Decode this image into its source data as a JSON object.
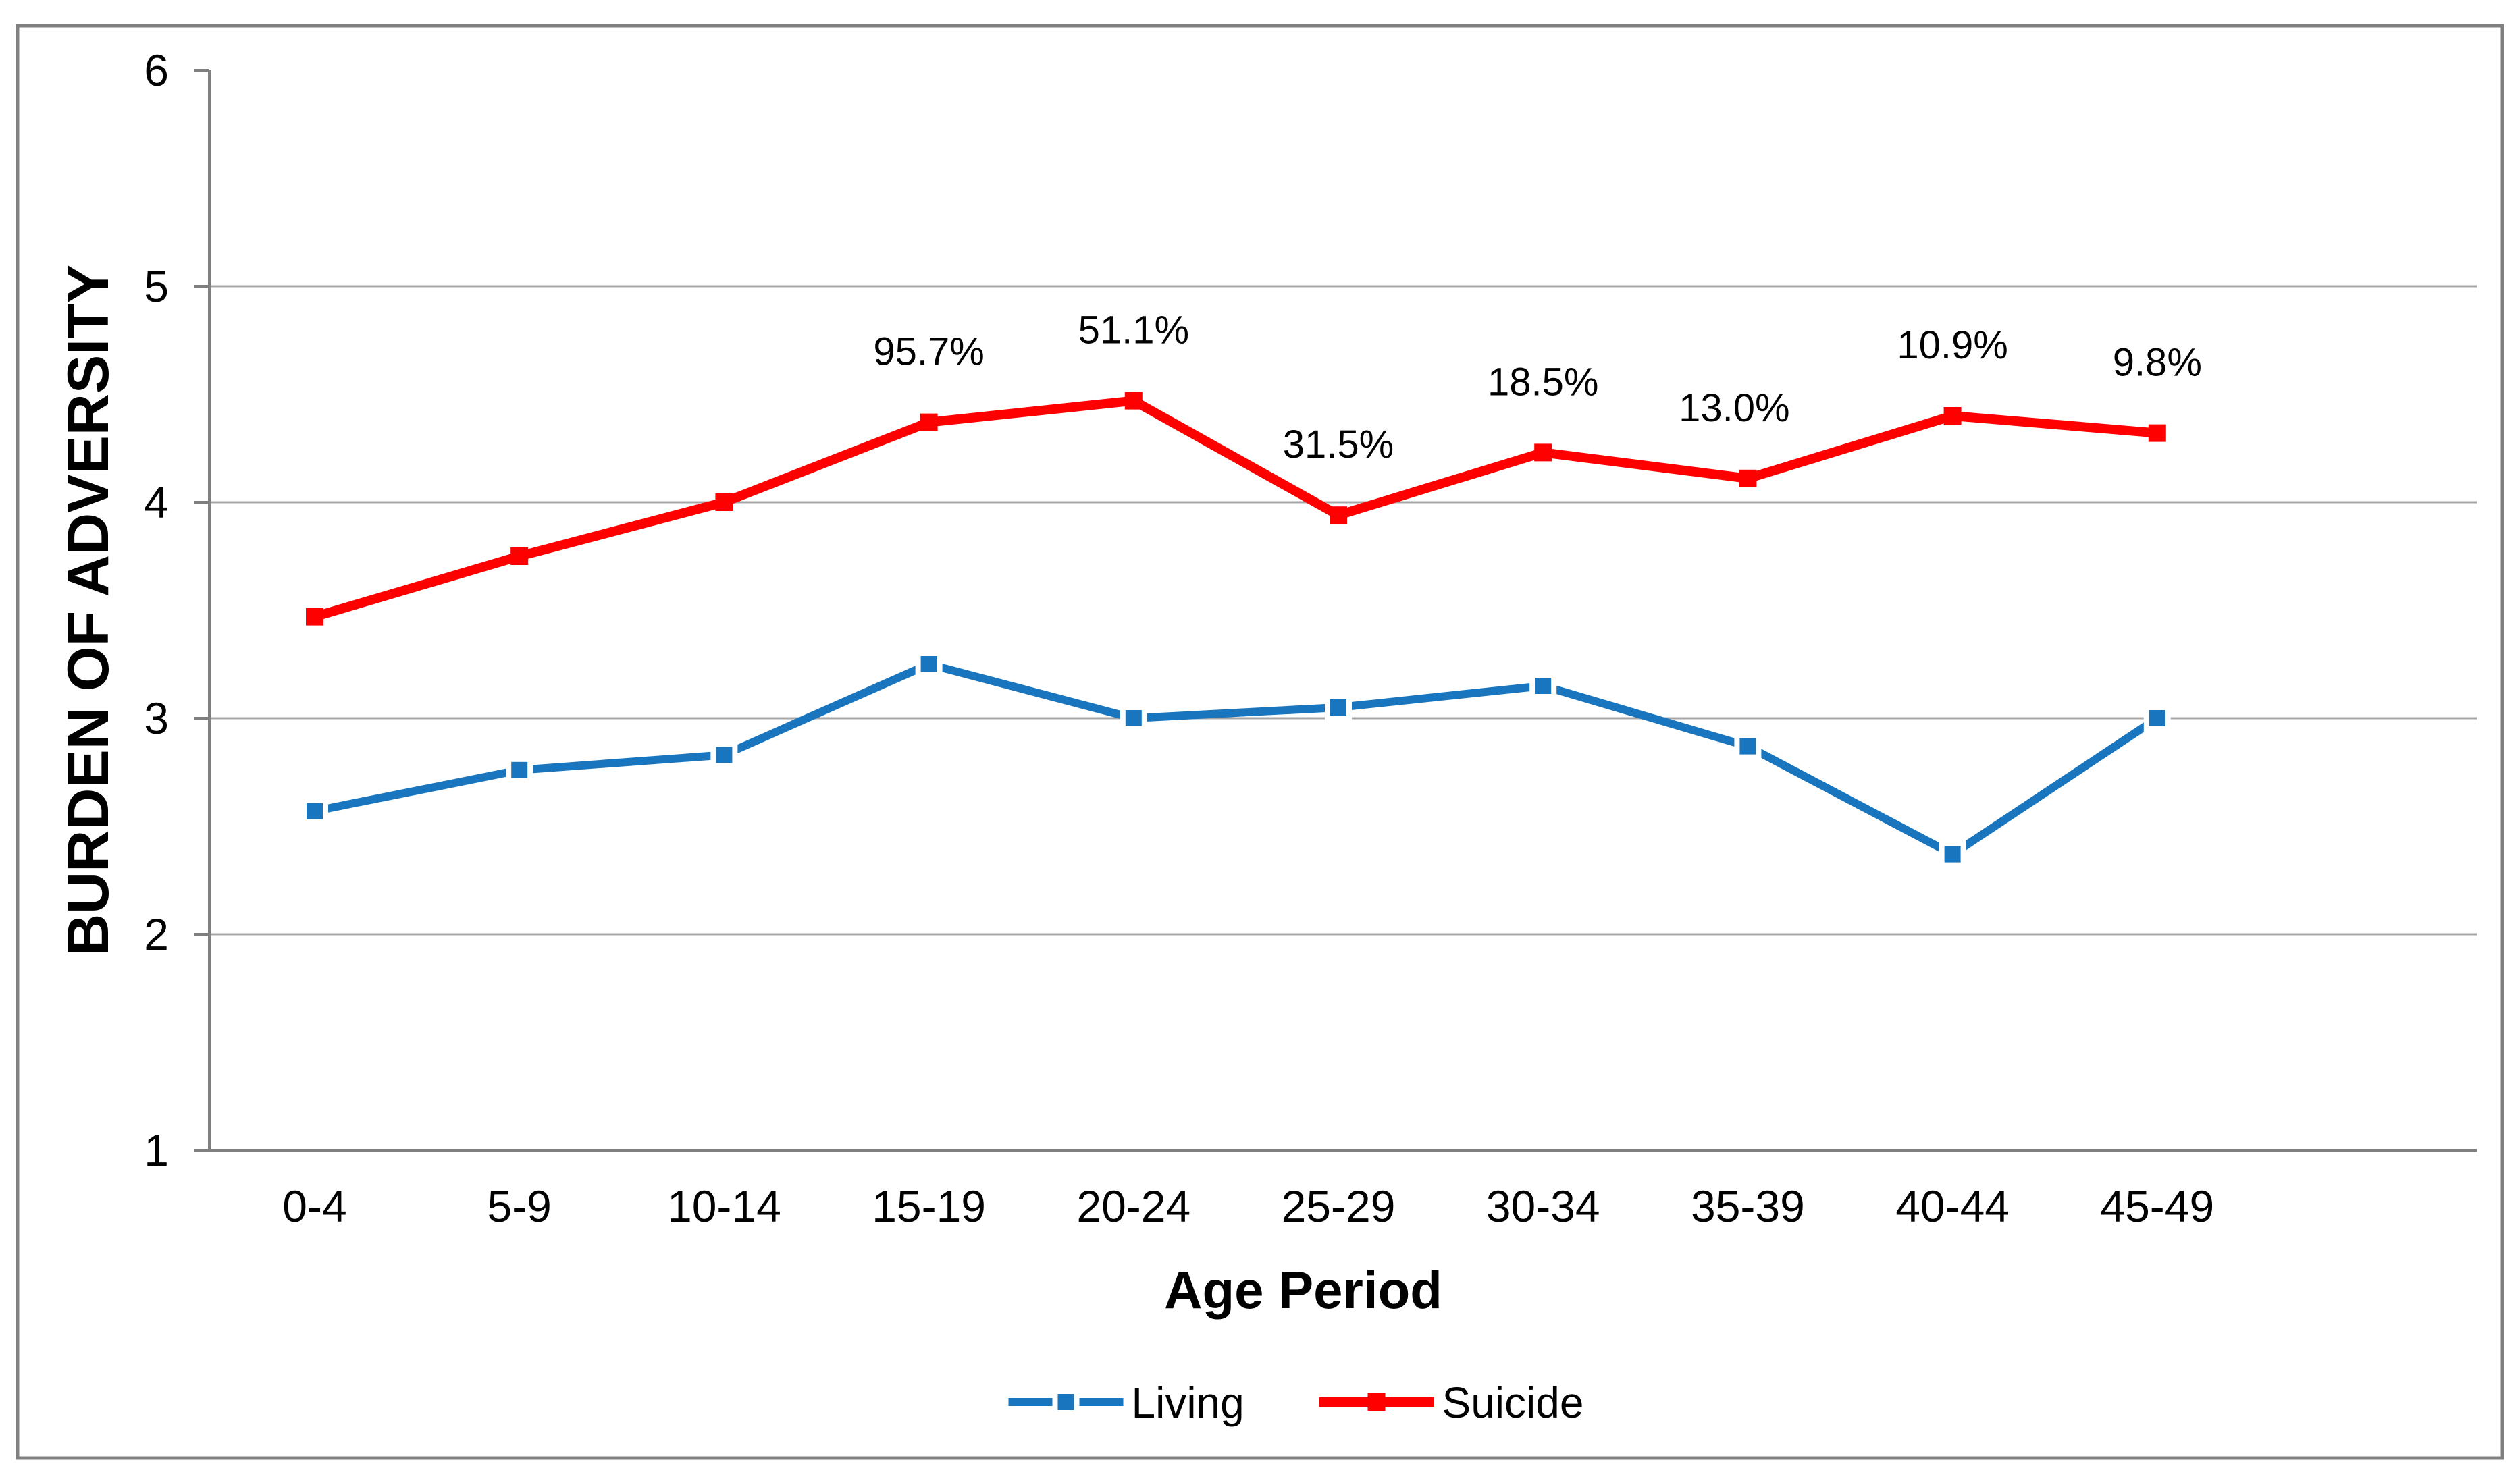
{
  "chart_data": {
    "type": "line",
    "title": "",
    "xlabel": "Age Period",
    "ylabel": "BURDEN OF ADVERSITY",
    "categories": [
      "0-4",
      "5-9",
      "10-14",
      "15-19",
      "20-24",
      "25-29",
      "30-34",
      "35-39",
      "40-44",
      "45-49"
    ],
    "y_axis": {
      "min": 1,
      "max": 6,
      "tick_labels": [
        "1",
        "2",
        "3",
        "4",
        "5",
        "6"
      ],
      "ticks": [
        1,
        2,
        3,
        4,
        5,
        6
      ]
    },
    "grid": true,
    "legend_position": "bottom",
    "series": [
      {
        "name": "Living",
        "color": "#1976BE",
        "marker": "square",
        "line_style": "solid",
        "marker_halo": true,
        "values": [
          2.57,
          2.76,
          2.83,
          3.25,
          3.0,
          3.05,
          3.15,
          2.87,
          2.37,
          3.0
        ]
      },
      {
        "name": "Suicide",
        "color": "#FF0000",
        "marker": "square",
        "line_style": "solid",
        "marker_halo": false,
        "values": [
          3.47,
          3.75,
          4.0,
          4.37,
          4.47,
          3.94,
          4.23,
          4.11,
          4.4,
          4.32
        ],
        "point_labels": [
          {
            "index": 3,
            "text": "95.7%",
            "dx": 0
          },
          {
            "index": 4,
            "text": "51.1%",
            "dx": 0
          },
          {
            "index": 5,
            "text": "31.5%",
            "dx": 0
          },
          {
            "index": 6,
            "text": "18.5%",
            "dx": 0
          },
          {
            "index": 7,
            "text": "13.0%",
            "dx": -20
          },
          {
            "index": 8,
            "text": "10.9%",
            "dx": 0
          },
          {
            "index": 9,
            "text": "9.8%",
            "dx": 0
          }
        ]
      }
    ]
  },
  "colors": {
    "gridline": "#A6A6A6",
    "axis": "#7F7F7F",
    "frame_border": "#808080",
    "background": "#FFFFFF",
    "text": "#000000"
  }
}
